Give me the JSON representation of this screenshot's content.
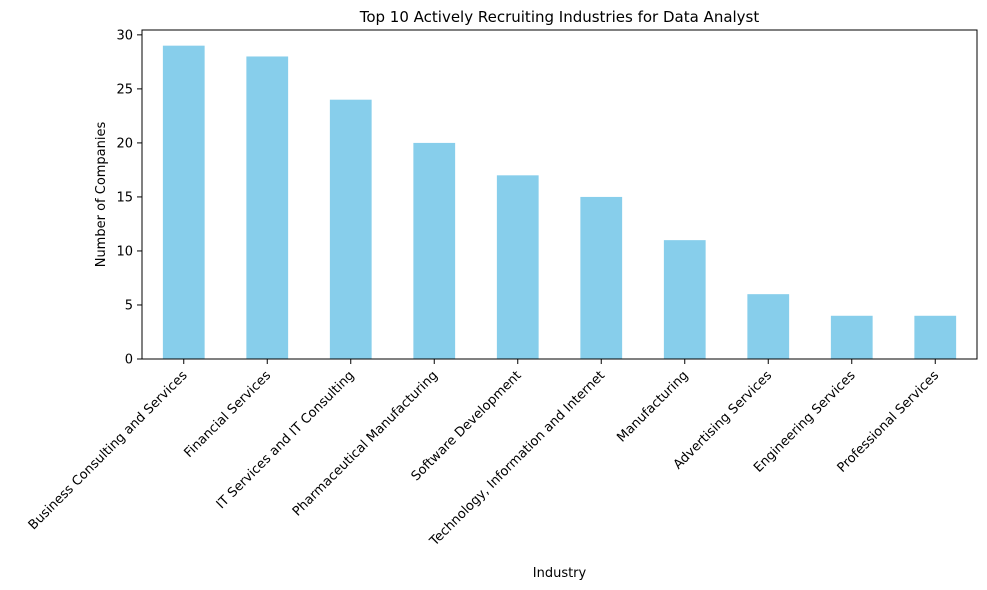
{
  "chart_data": {
    "type": "bar",
    "title": "Top 10 Actively Recruiting Industries for Data Analyst",
    "xlabel": "Industry",
    "ylabel": "Number of Companies",
    "categories": [
      "Business Consulting and Services",
      "Financial Services",
      "IT Services and IT Consulting",
      "Pharmaceutical Manufacturing",
      "Software Development",
      "Technology, Information and Internet",
      "Manufacturing",
      "Advertising Services",
      "Engineering Services",
      "Professional Services"
    ],
    "values": [
      29,
      28,
      24,
      20,
      17,
      15,
      11,
      6,
      4,
      4
    ],
    "ylim": [
      0,
      30.45
    ],
    "yticks": [
      0,
      5,
      10,
      15,
      20,
      25,
      30
    ],
    "grid": false,
    "legend": "none",
    "bar_color": "#87CEEB"
  }
}
